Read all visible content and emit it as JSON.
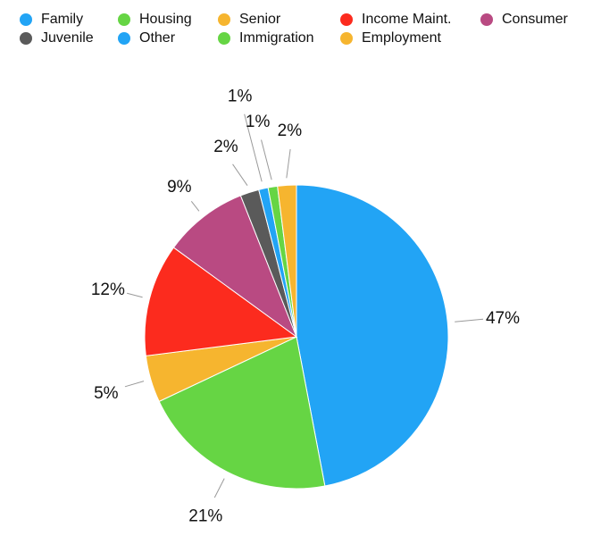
{
  "chart_data": {
    "type": "pie",
    "title": "",
    "legend_placement": "top",
    "series": [
      {
        "name": "Family",
        "value": 47,
        "label": "47%",
        "color": "#22a4f5"
      },
      {
        "name": "Housing",
        "value": 21,
        "label": "21%",
        "color": "#66d544"
      },
      {
        "name": "Senior",
        "value": 5,
        "label": "5%",
        "color": "#f6b52f"
      },
      {
        "name": "Income Maint.",
        "value": 12,
        "label": "12%",
        "color": "#fc2b1e"
      },
      {
        "name": "Consumer",
        "value": 9,
        "label": "9%",
        "color": "#b94a82"
      },
      {
        "name": "Juvenile",
        "value": 2,
        "label": "2%",
        "color": "#5a5a5a"
      },
      {
        "name": "Other",
        "value": 1,
        "label": "1%",
        "color": "#22a4f5"
      },
      {
        "name": "Immigration",
        "value": 1,
        "label": "1%",
        "color": "#66d544"
      },
      {
        "name": "Employment",
        "value": 2,
        "label": "2%",
        "color": "#f6b52f"
      }
    ]
  }
}
